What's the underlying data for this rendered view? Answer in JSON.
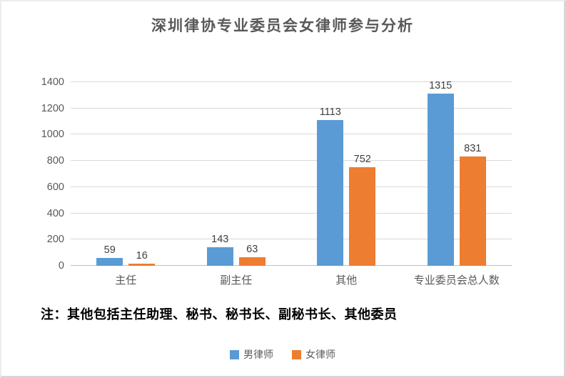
{
  "title": "深圳律协专业委员会女律师参与分析",
  "note": "注：其他包括主任助理、秘书、秘书长、副秘书长、其他委员",
  "colors": {
    "series_male": "#5B9BD5",
    "series_female": "#ED7D31",
    "gridline": "#D9D9D9",
    "axis_line": "#BFBFBF",
    "axis_text": "#595959",
    "title_text": "#595959",
    "data_label_text": "#404040",
    "note_text": "#000000",
    "legend_text": "#595959",
    "background": "#FFFFFF"
  },
  "chart_data": {
    "type": "bar",
    "title": "深圳律协专业委员会女律师参与分析",
    "categories": [
      "主任",
      "副主任",
      "其他",
      "专业委员会总人数"
    ],
    "series": [
      {
        "name": "男律师",
        "color": "#5B9BD5",
        "values": [
          59,
          143,
          1113,
          1315
        ]
      },
      {
        "name": "女律师",
        "color": "#ED7D31",
        "values": [
          16,
          63,
          752,
          831
        ]
      }
    ],
    "xlabel": "",
    "ylabel": "",
    "ylim": [
      0,
      1400
    ],
    "yticks": [
      0,
      200,
      400,
      600,
      800,
      1000,
      1200,
      1400
    ],
    "grid": true,
    "data_labels": true,
    "legend_position": "bottom",
    "annotation": "注：其他包括主任助理、秘书、秘书长、副秘书长、其他委员"
  }
}
